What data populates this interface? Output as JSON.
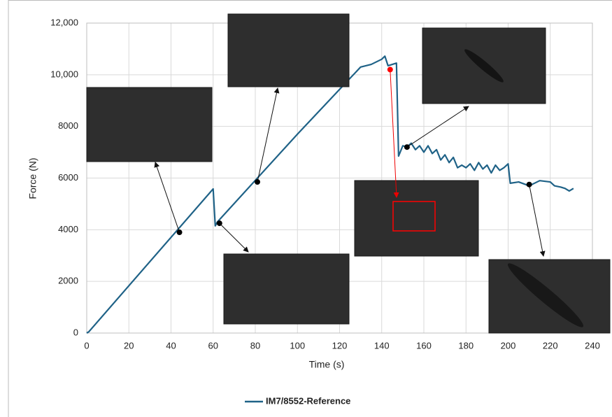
{
  "chart_data": {
    "type": "line",
    "x_label": "Time (s)",
    "y_label": "Force (N)",
    "xlim": [
      0,
      240
    ],
    "xticks": [
      0,
      20,
      40,
      60,
      80,
      100,
      120,
      140,
      160,
      180,
      200,
      220,
      240
    ],
    "ylim": [
      0,
      12000
    ],
    "yticks": [
      0,
      2000,
      4000,
      6000,
      8000,
      {
        "value": 10000,
        "label": "10,000"
      },
      {
        "value": 12000,
        "label": "12,000"
      }
    ],
    "grid": true,
    "series": [
      {
        "name": "IM7/8552-Reference",
        "color": "#1f6287",
        "x": [
          0,
          1,
          60,
          61,
          62,
          100,
          130,
          135,
          140,
          141.5,
          143,
          145,
          147,
          148,
          150,
          152,
          154,
          156,
          158,
          160,
          162,
          164,
          166,
          168,
          170,
          172,
          174,
          176,
          178,
          180,
          182,
          184,
          186,
          188,
          190,
          192,
          194,
          196,
          198,
          200,
          201,
          205,
          210,
          215,
          220,
          222,
          225,
          227,
          229,
          231
        ],
        "values": [
          0,
          50,
          5580,
          4150,
          4300,
          7700,
          10300,
          10400,
          10600,
          10720,
          10350,
          10400,
          10450,
          6850,
          7250,
          7200,
          7350,
          7100,
          7250,
          7000,
          7250,
          6950,
          7100,
          6700,
          6900,
          6600,
          6800,
          6400,
          6500,
          6400,
          6550,
          6300,
          6600,
          6350,
          6500,
          6200,
          6500,
          6300,
          6400,
          6550,
          5800,
          5850,
          5700,
          5900,
          5850,
          5700,
          5650,
          5600,
          5500,
          5600
        ]
      }
    ],
    "markers": [
      {
        "x": 44,
        "y": 3900,
        "color": "#000000"
      },
      {
        "x": 63,
        "y": 4250,
        "color": "#000000"
      },
      {
        "x": 81,
        "y": 5850,
        "color": "#000000"
      },
      {
        "x": 144,
        "y": 10200,
        "color": "#ff0000"
      },
      {
        "x": 152,
        "y": 7200,
        "color": "#000000"
      },
      {
        "x": 210,
        "y": 5750,
        "color": "#000000"
      }
    ]
  }
}
